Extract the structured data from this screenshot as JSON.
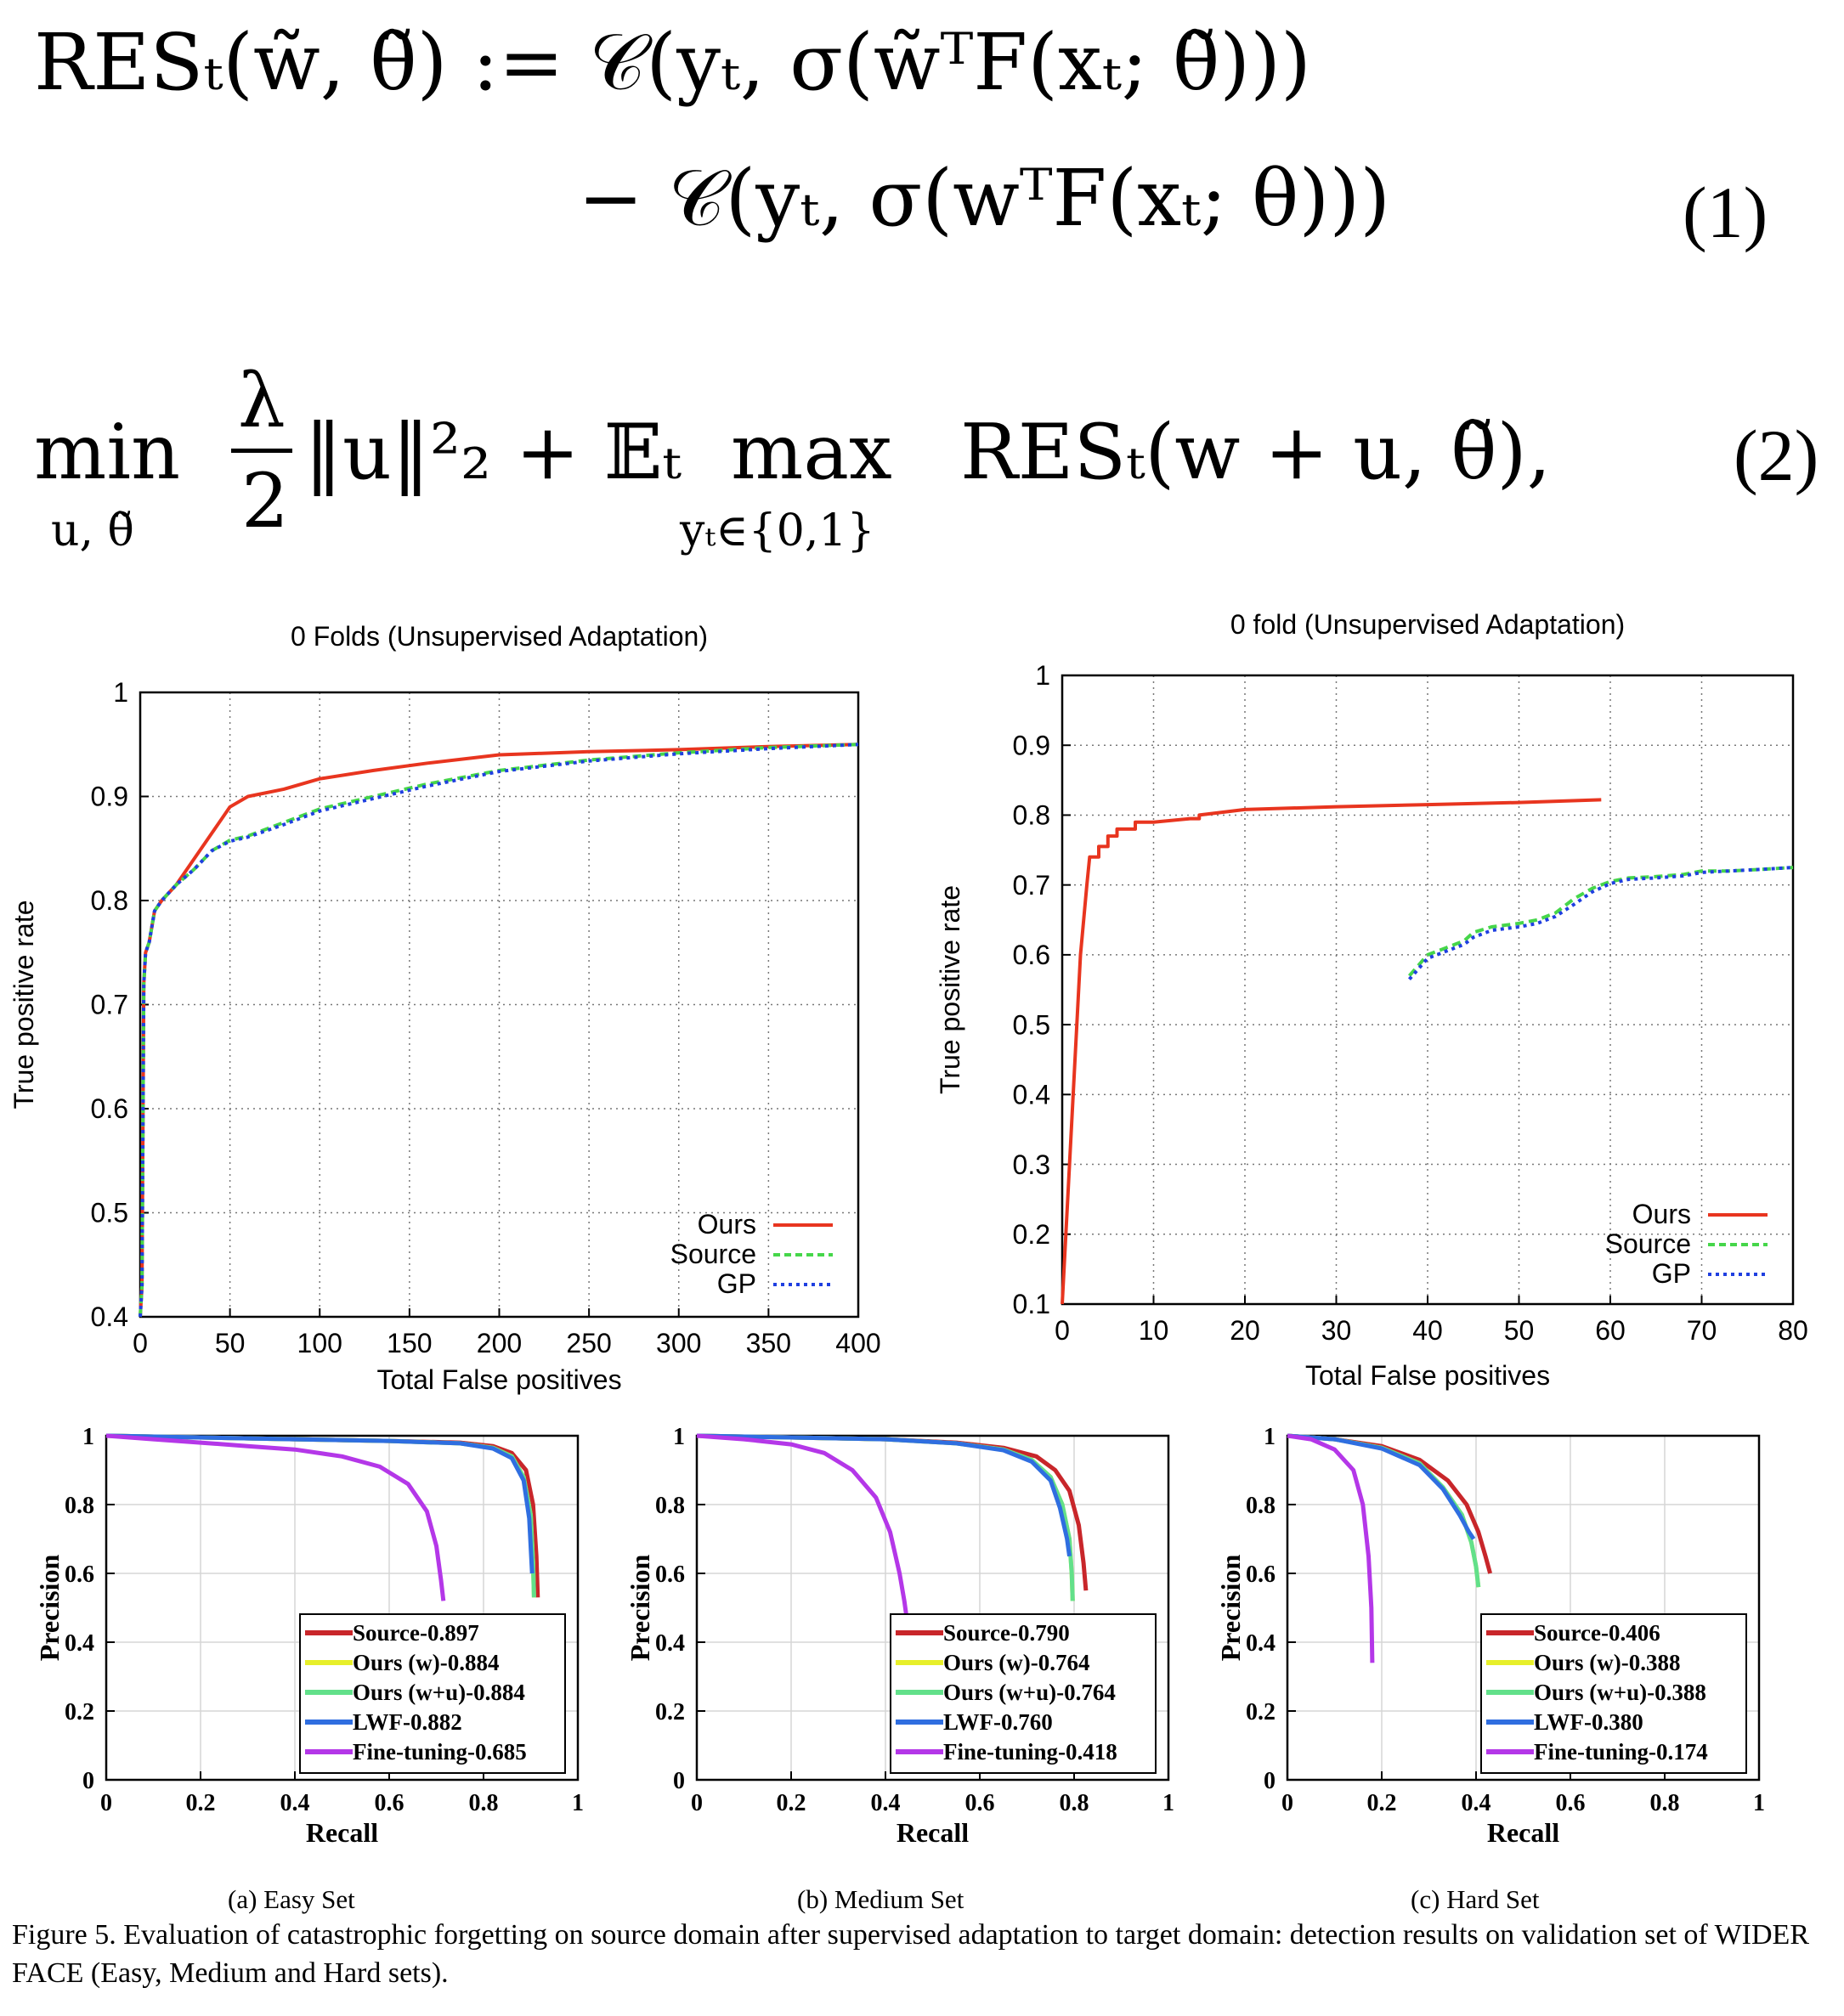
{
  "equations": {
    "eq1": {
      "line1": "RESₜ(w̃, θ̃) := 𝒞(yₜ, σ(w̃ᵀF(xₜ; θ̃)))",
      "line2": "− 𝒞(yₜ, σ(wᵀF(xₜ; θ)))",
      "comma": ",",
      "number": "(1)"
    },
    "eq2": {
      "min_op": "min",
      "min_sub": "u, θ̃",
      "frac_num": "λ",
      "frac_den": "2",
      "body": "‖u‖²₂ + 𝔼ₜ",
      "max_op": "max",
      "max_sub": "yₜ∈{0,1}",
      "tail": "RESₜ(w + u, θ̃),",
      "number": "(2)"
    }
  },
  "chart_data": [
    {
      "type": "line",
      "title": "0 Folds (Unsupervised Adaptation)",
      "xlabel": "Total False positives",
      "ylabel": "True positive rate",
      "xlim": [
        0,
        400
      ],
      "ylim": [
        0.4,
        1
      ],
      "xticks": [
        "0",
        "50",
        "100",
        "150",
        "200",
        "250",
        "300",
        "350",
        "400"
      ],
      "yticks": [
        "0.4",
        "0.5",
        "0.6",
        "0.7",
        "0.8",
        "0.9",
        "1"
      ],
      "grid": true,
      "legend_position": "bottom-right",
      "series": [
        {
          "name": "Ours",
          "color": "#e8351f",
          "dash": "solid",
          "x": [
            0,
            1,
            2,
            3,
            5,
            8,
            12,
            20,
            30,
            40,
            50,
            60,
            80,
            100,
            130,
            160,
            200,
            250,
            300,
            350,
            400
          ],
          "y": [
            0.4,
            0.43,
            0.72,
            0.75,
            0.76,
            0.79,
            0.8,
            0.815,
            0.84,
            0.865,
            0.89,
            0.9,
            0.907,
            0.917,
            0.925,
            0.932,
            0.94,
            0.943,
            0.945,
            0.948,
            0.95
          ]
        },
        {
          "name": "Source",
          "color": "#46d64a",
          "dash": "dashed",
          "x": [
            0,
            1,
            2,
            3,
            5,
            8,
            12,
            20,
            30,
            40,
            50,
            60,
            80,
            100,
            130,
            160,
            200,
            250,
            300,
            350,
            400
          ],
          "y": [
            0.4,
            0.43,
            0.72,
            0.75,
            0.76,
            0.79,
            0.8,
            0.815,
            0.83,
            0.848,
            0.858,
            0.862,
            0.875,
            0.888,
            0.9,
            0.912,
            0.925,
            0.935,
            0.942,
            0.947,
            0.95
          ]
        },
        {
          "name": "GP",
          "color": "#1f3fe0",
          "dash": "dotted",
          "x": [
            0,
            1,
            2,
            3,
            5,
            8,
            12,
            20,
            30,
            40,
            50,
            60,
            80,
            100,
            130,
            160,
            200,
            250,
            300,
            350,
            400
          ],
          "y": [
            0.4,
            0.43,
            0.72,
            0.75,
            0.76,
            0.79,
            0.8,
            0.815,
            0.83,
            0.848,
            0.857,
            0.861,
            0.873,
            0.886,
            0.898,
            0.91,
            0.924,
            0.934,
            0.941,
            0.946,
            0.95
          ]
        }
      ]
    },
    {
      "type": "line",
      "title": "0 fold (Unsupervised Adaptation)",
      "xlabel": "Total False positives",
      "ylabel": "True positive rate",
      "xlim": [
        0,
        80
      ],
      "ylim": [
        0.1,
        1
      ],
      "xticks": [
        "0",
        "10",
        "20",
        "30",
        "40",
        "50",
        "60",
        "70",
        "80"
      ],
      "yticks": [
        "0.1",
        "0.2",
        "0.3",
        "0.4",
        "0.5",
        "0.6",
        "0.7",
        "0.8",
        "0.9",
        "1"
      ],
      "grid": true,
      "legend_position": "bottom-right",
      "series": [
        {
          "name": "Ours",
          "color": "#e8351f",
          "dash": "solid",
          "x": [
            0,
            2,
            2.7,
            3,
            3,
            4,
            4,
            5,
            5,
            6,
            6,
            8,
            8,
            10,
            14,
            15,
            15,
            20,
            30,
            40,
            50,
            59
          ],
          "y": [
            0.1,
            0.6,
            0.7,
            0.74,
            0.74,
            0.74,
            0.755,
            0.755,
            0.77,
            0.77,
            0.78,
            0.78,
            0.79,
            0.79,
            0.795,
            0.795,
            0.8,
            0.808,
            0.812,
            0.815,
            0.818,
            0.822
          ]
        },
        {
          "name": "Source",
          "color": "#46d64a",
          "dash": "dashed",
          "x": [
            38,
            39,
            40,
            42,
            44,
            45,
            47,
            50,
            52,
            54,
            56,
            58,
            60,
            62,
            65,
            68,
            70,
            73,
            76,
            80
          ],
          "y": [
            0.57,
            0.585,
            0.6,
            0.61,
            0.62,
            0.632,
            0.64,
            0.645,
            0.65,
            0.66,
            0.68,
            0.695,
            0.705,
            0.71,
            0.712,
            0.715,
            0.72,
            0.72,
            0.722,
            0.725
          ]
        },
        {
          "name": "GP",
          "color": "#1f3fe0",
          "dash": "dotted",
          "x": [
            38,
            39,
            40,
            42,
            44,
            45,
            47,
            50,
            52,
            54,
            56,
            58,
            60,
            62,
            65,
            68,
            70,
            73,
            76,
            80
          ],
          "y": [
            0.565,
            0.58,
            0.595,
            0.605,
            0.615,
            0.625,
            0.635,
            0.64,
            0.645,
            0.655,
            0.672,
            0.69,
            0.702,
            0.708,
            0.71,
            0.713,
            0.718,
            0.72,
            0.722,
            0.725
          ]
        }
      ]
    },
    {
      "type": "line",
      "subtitle": "(a)  Easy Set",
      "xlabel": "Recall",
      "ylabel": "Precision",
      "xlim": [
        0,
        1
      ],
      "ylim": [
        0,
        1
      ],
      "xticks": [
        "0",
        "0.2",
        "0.4",
        "0.6",
        "0.8",
        "1"
      ],
      "yticks": [
        "0",
        "0.2",
        "0.4",
        "0.6",
        "0.8",
        "1"
      ],
      "grid": true,
      "legend_position": "bottom-right",
      "series": [
        {
          "name": "Source-0.897",
          "color": "#c8262a",
          "x": [
            0,
            0.2,
            0.4,
            0.6,
            0.75,
            0.82,
            0.86,
            0.89,
            0.905,
            0.912,
            0.915
          ],
          "y": [
            1,
            0.995,
            0.99,
            0.985,
            0.98,
            0.97,
            0.95,
            0.9,
            0.8,
            0.65,
            0.53
          ]
        },
        {
          "name": "Ours (w)-0.884",
          "color": "#e7ef2a",
          "x": [
            0,
            0.2,
            0.4,
            0.6,
            0.75,
            0.82,
            0.86,
            0.885,
            0.9,
            0.905,
            0.907
          ],
          "y": [
            1,
            0.995,
            0.99,
            0.985,
            0.978,
            0.965,
            0.94,
            0.88,
            0.77,
            0.63,
            0.53
          ]
        },
        {
          "name": "Ours (w+u)-0.884",
          "color": "#62e08a",
          "x": [
            0,
            0.2,
            0.4,
            0.6,
            0.75,
            0.82,
            0.86,
            0.885,
            0.9,
            0.905,
            0.907
          ],
          "y": [
            1,
            0.995,
            0.99,
            0.985,
            0.978,
            0.965,
            0.94,
            0.88,
            0.77,
            0.63,
            0.53
          ]
        },
        {
          "name": "LWF-0.882",
          "color": "#2f6ee0",
          "x": [
            0,
            0.2,
            0.4,
            0.6,
            0.75,
            0.82,
            0.86,
            0.885,
            0.897,
            0.903
          ],
          "y": [
            1,
            0.995,
            0.99,
            0.985,
            0.978,
            0.963,
            0.935,
            0.87,
            0.76,
            0.6
          ]
        },
        {
          "name": "Fine-tuning-0.685",
          "color": "#b437e8",
          "x": [
            0,
            0.1,
            0.2,
            0.3,
            0.4,
            0.5,
            0.58,
            0.64,
            0.68,
            0.7,
            0.71,
            0.715
          ],
          "y": [
            1,
            0.99,
            0.98,
            0.97,
            0.96,
            0.94,
            0.91,
            0.86,
            0.78,
            0.68,
            0.58,
            0.52
          ]
        }
      ]
    },
    {
      "type": "line",
      "subtitle": "(b)  Medium Set",
      "xlabel": "Recall",
      "ylabel": "Precision",
      "xlim": [
        0,
        1
      ],
      "ylim": [
        0,
        1
      ],
      "xticks": [
        "0",
        "0.2",
        "0.4",
        "0.6",
        "0.8",
        "1"
      ],
      "yticks": [
        "0",
        "0.2",
        "0.4",
        "0.6",
        "0.8",
        "1"
      ],
      "grid": true,
      "legend_position": "bottom-right",
      "series": [
        {
          "name": "Source-0.790",
          "color": "#c8262a",
          "x": [
            0,
            0.2,
            0.4,
            0.55,
            0.65,
            0.72,
            0.76,
            0.79,
            0.81,
            0.82,
            0.825
          ],
          "y": [
            1,
            0.995,
            0.99,
            0.98,
            0.965,
            0.94,
            0.9,
            0.84,
            0.74,
            0.63,
            0.55
          ]
        },
        {
          "name": "Ours (w)-0.764",
          "color": "#e7ef2a",
          "x": [
            0,
            0.2,
            0.4,
            0.55,
            0.65,
            0.71,
            0.75,
            0.775,
            0.79,
            0.795,
            0.797
          ],
          "y": [
            1,
            0.995,
            0.99,
            0.978,
            0.96,
            0.93,
            0.88,
            0.8,
            0.7,
            0.6,
            0.52
          ]
        },
        {
          "name": "Ours (w+u)-0.764",
          "color": "#62e08a",
          "x": [
            0,
            0.2,
            0.4,
            0.55,
            0.65,
            0.71,
            0.75,
            0.775,
            0.79,
            0.795,
            0.797
          ],
          "y": [
            1,
            0.995,
            0.99,
            0.978,
            0.96,
            0.93,
            0.88,
            0.8,
            0.7,
            0.6,
            0.52
          ]
        },
        {
          "name": "LWF-0.760",
          "color": "#2f6ee0",
          "x": [
            0,
            0.2,
            0.4,
            0.55,
            0.65,
            0.71,
            0.75,
            0.77,
            0.785,
            0.79
          ],
          "y": [
            1,
            0.995,
            0.99,
            0.978,
            0.958,
            0.925,
            0.87,
            0.79,
            0.7,
            0.65
          ]
        },
        {
          "name": "Fine-tuning-0.418",
          "color": "#b437e8",
          "x": [
            0,
            0.1,
            0.2,
            0.27,
            0.33,
            0.38,
            0.41,
            0.43,
            0.44,
            0.445
          ],
          "y": [
            1,
            0.99,
            0.975,
            0.95,
            0.9,
            0.82,
            0.72,
            0.6,
            0.52,
            0.47
          ]
        }
      ]
    },
    {
      "type": "line",
      "subtitle": "(c)  Hard Set",
      "xlabel": "Recall",
      "ylabel": "Precision",
      "xlim": [
        0,
        1
      ],
      "ylim": [
        0,
        1
      ],
      "xticks": [
        "0",
        "0.2",
        "0.4",
        "0.6",
        "0.8",
        "1"
      ],
      "yticks": [
        "0",
        "0.2",
        "0.4",
        "0.6",
        "0.8",
        "1"
      ],
      "grid": true,
      "legend_position": "bottom-right",
      "series": [
        {
          "name": "Source-0.406",
          "color": "#c8262a",
          "x": [
            0,
            0.1,
            0.2,
            0.28,
            0.34,
            0.38,
            0.405,
            0.42,
            0.43
          ],
          "y": [
            1,
            0.99,
            0.97,
            0.93,
            0.87,
            0.8,
            0.72,
            0.65,
            0.6
          ]
        },
        {
          "name": "Ours (w)-0.388",
          "color": "#e7ef2a",
          "x": [
            0,
            0.1,
            0.2,
            0.28,
            0.33,
            0.37,
            0.39,
            0.4,
            0.405
          ],
          "y": [
            1,
            0.99,
            0.965,
            0.92,
            0.85,
            0.77,
            0.69,
            0.62,
            0.56
          ]
        },
        {
          "name": "Ours (w+u)-0.388",
          "color": "#62e08a",
          "x": [
            0,
            0.1,
            0.2,
            0.28,
            0.33,
            0.37,
            0.39,
            0.4,
            0.405
          ],
          "y": [
            1,
            0.99,
            0.965,
            0.92,
            0.85,
            0.77,
            0.69,
            0.62,
            0.56
          ]
        },
        {
          "name": "LWF-0.380",
          "color": "#2f6ee0",
          "x": [
            0,
            0.1,
            0.2,
            0.28,
            0.33,
            0.365,
            0.385,
            0.395
          ],
          "y": [
            1,
            0.99,
            0.963,
            0.915,
            0.845,
            0.77,
            0.72,
            0.7
          ]
        },
        {
          "name": "Fine-tuning-0.174",
          "color": "#b437e8",
          "x": [
            0,
            0.05,
            0.1,
            0.14,
            0.16,
            0.172,
            0.178,
            0.18
          ],
          "y": [
            1,
            0.99,
            0.96,
            0.9,
            0.8,
            0.65,
            0.5,
            0.34
          ]
        }
      ]
    }
  ],
  "caption": "Figure 5. Evaluation of catastrophic forgetting on source domain after supervised adaptation to target domain: detection results on validation set of WIDER FACE (Easy, Medium and Hard sets)."
}
